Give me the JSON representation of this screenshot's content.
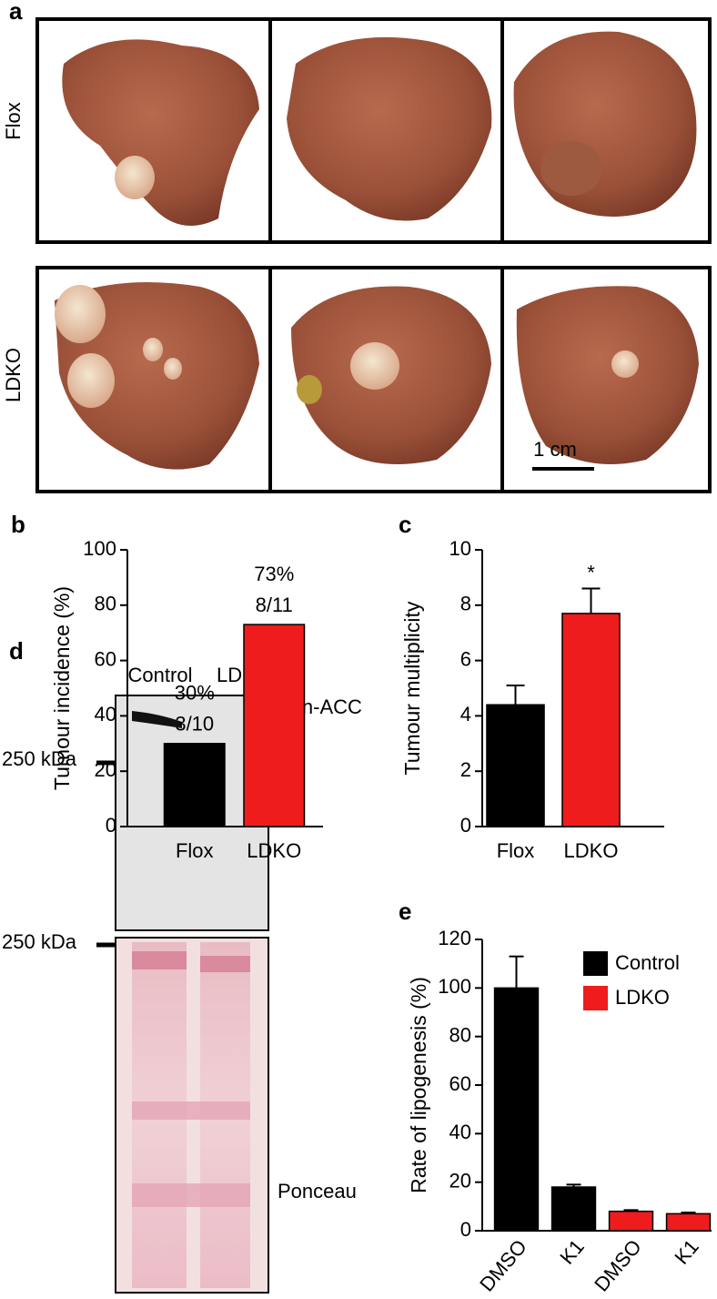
{
  "figure": {
    "panel_a": {
      "letter": "a",
      "rows": [
        "Flox",
        "LDKO"
      ],
      "scale_bar": "1 cm"
    },
    "panel_d": {
      "letter": "d",
      "lanes": [
        "Control",
        "LDKO"
      ],
      "blot": "Pan-ACC",
      "stain": "Ponceau",
      "marker_labels": [
        "250 kDa",
        "250 kDa"
      ]
    }
  },
  "chart_data": [
    {
      "panel": "b",
      "type": "bar",
      "ylabel": "Tumour incidence (%)",
      "categories": [
        "Flox",
        "LDKO"
      ],
      "values": [
        30,
        73
      ],
      "value_labels": [
        "30%",
        "73%"
      ],
      "annotations": [
        "3/10",
        "8/11"
      ],
      "colors": [
        "#000000",
        "#ee1c1c"
      ],
      "ylim": [
        0,
        100
      ],
      "yticks": [
        0,
        20,
        40,
        60,
        80,
        100
      ]
    },
    {
      "panel": "c",
      "type": "bar",
      "ylabel": "Tumour multiplicity",
      "categories": [
        "Flox",
        "LDKO"
      ],
      "values": [
        4.4,
        7.7
      ],
      "errors": [
        0.7,
        0.9
      ],
      "annotations": [
        null,
        "*"
      ],
      "colors": [
        "#000000",
        "#ee1c1c"
      ],
      "ylim": [
        0,
        10
      ],
      "yticks": [
        0,
        2,
        4,
        6,
        8,
        10
      ]
    },
    {
      "panel": "e",
      "type": "bar",
      "ylabel": "Rate of lipogenesis (%)",
      "categories": [
        "DMSO",
        "K1",
        "DMSO",
        "K1"
      ],
      "series": [
        {
          "name": "Control",
          "color": "#000000",
          "values": [
            100,
            18,
            null,
            null
          ],
          "errors": [
            13,
            1,
            null,
            null
          ]
        },
        {
          "name": "LDKO",
          "color": "#ee1c1c",
          "values": [
            null,
            null,
            8,
            7
          ],
          "errors": [
            null,
            null,
            0.5,
            0.5
          ]
        }
      ],
      "legend": "upper right",
      "ylim": [
        0,
        120
      ],
      "yticks": [
        0,
        20,
        40,
        60,
        80,
        100,
        120
      ]
    }
  ]
}
